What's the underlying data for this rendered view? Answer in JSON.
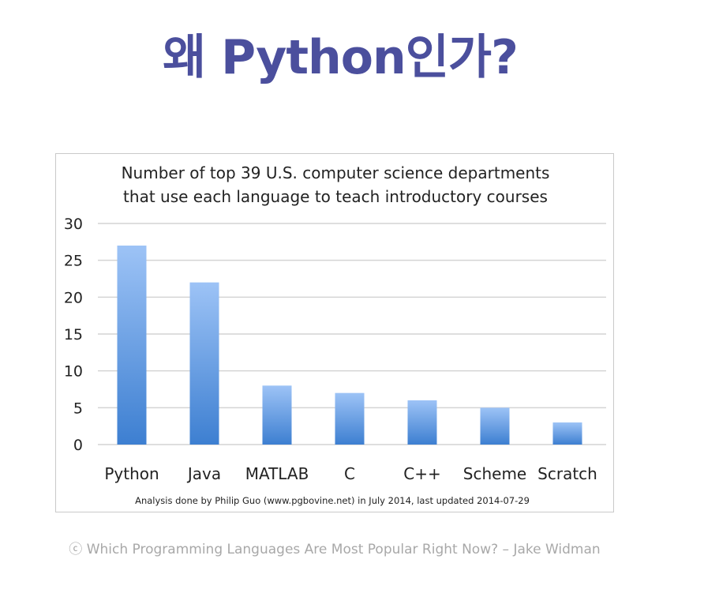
{
  "slide": {
    "title": "왜 Python인가?",
    "caption": "ⓒ Which Programming Languages Are Most Popular Right Now? – Jake Widman"
  },
  "colors": {
    "title": "#4b4f9d",
    "bar_top": "#9dc3f6",
    "bar_bottom": "#3d7fd1",
    "grid": "#d4d4d4",
    "caption": "#a8a8a8"
  },
  "chart_data": {
    "type": "bar",
    "title_lines": [
      "Number of top 39 U.S. computer science departments",
      "that use each language to teach introductory courses"
    ],
    "categories": [
      "Python",
      "Java",
      "MATLAB",
      "C",
      "C++",
      "Scheme",
      "Scratch"
    ],
    "values": [
      27,
      22,
      8,
      7,
      6,
      5,
      3
    ],
    "ylim": [
      0,
      30
    ],
    "yticks": [
      0,
      5,
      10,
      15,
      20,
      25,
      30
    ],
    "grid": true,
    "xlabel": "",
    "ylabel": "",
    "note": "Analysis done by Philip Guo (www.pgbovine.net) in July 2014, last updated 2014-07-29"
  }
}
